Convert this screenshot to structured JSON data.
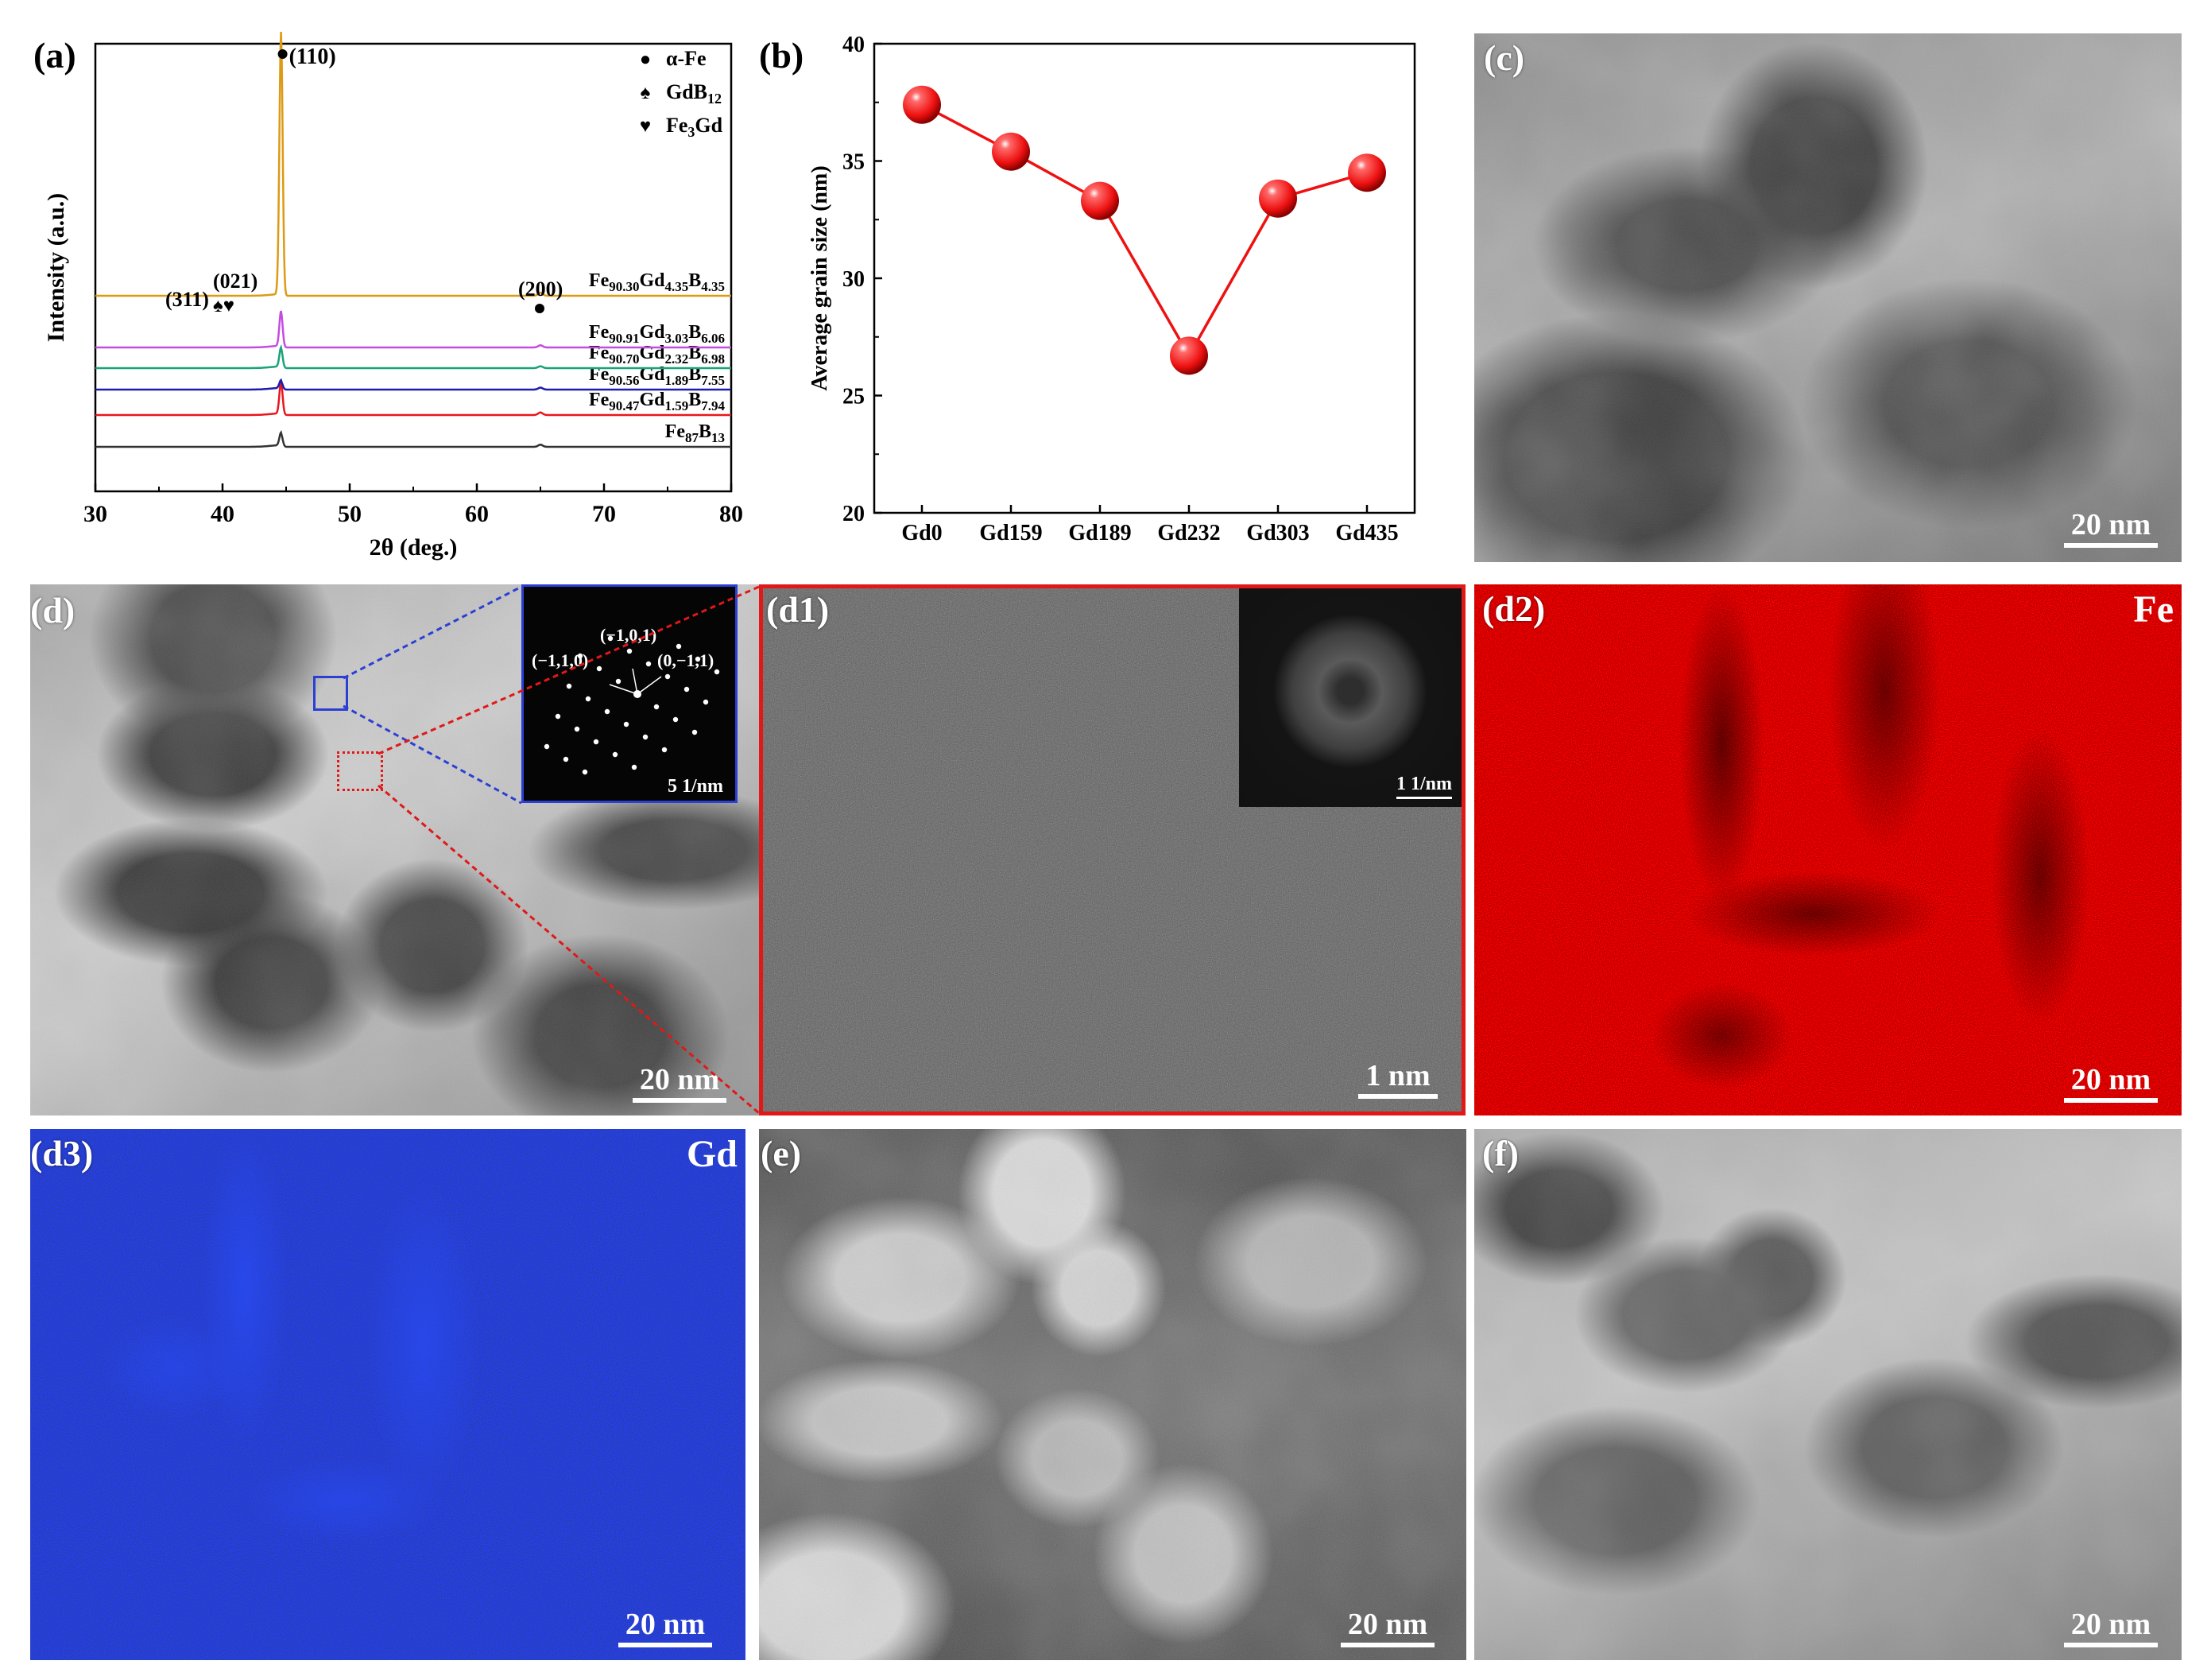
{
  "panels": {
    "a": {
      "label": "(a)",
      "chart_data": {
        "type": "line",
        "xlabel": "2θ (deg.)",
        "ylabel": "Intensity (a.u.)",
        "xlim": [
          30,
          80
        ],
        "xticks": [
          "30",
          "40",
          "50",
          "60",
          "70",
          "80"
        ],
        "legend": [
          {
            "symbol": "●",
            "text": "α-Fe"
          },
          {
            "symbol": "♠",
            "text": "GdB",
            "sub": "12"
          },
          {
            "symbol": "♥",
            "text": "Fe",
            "sub": "3",
            "rest": "Gd"
          }
        ],
        "peak_labels": [
          "(110)",
          "(311)",
          "(021)",
          "(200)"
        ],
        "series": [
          {
            "name": "Fe87B13",
            "color": "#333333",
            "peak_110": 0.3,
            "peak_200": 0.05
          },
          {
            "name": "Fe90.47Gd1.59B7.94",
            "color": "#e8161b",
            "peak_110": 1.0,
            "peak_200": 0.08
          },
          {
            "name": "Fe90.56Gd1.89B7.55",
            "color": "#1c1cae",
            "peak_110": 0.2,
            "peak_200": 0.05
          },
          {
            "name": "Fe90.70Gd2.32B6.98",
            "color": "#18a37a",
            "peak_110": 0.6,
            "peak_200": 0.06
          },
          {
            "name": "Fe90.91Gd3.03B6.06",
            "color": "#c54ce0",
            "peak_110": 1.6,
            "peak_200": 0.1
          },
          {
            "name": "Fe90.30Gd4.35B4.35",
            "color": "#dd9a14",
            "peak_110": 17.0,
            "peak_200": 0.2
          }
        ]
      }
    },
    "b": {
      "label": "(b)",
      "chart_data": {
        "type": "line",
        "xlabel": "",
        "ylabel": "Average grain size (nm)",
        "ylim": [
          20,
          40
        ],
        "yticks": [
          "20",
          "25",
          "30",
          "35",
          "40"
        ],
        "categories": [
          "Gd0",
          "Gd159",
          "Gd189",
          "Gd232",
          "Gd303",
          "Gd435"
        ],
        "values": [
          37.4,
          35.4,
          33.3,
          26.7,
          33.4,
          34.5
        ],
        "color": "#ee1111"
      }
    },
    "c": {
      "label": "(c)",
      "scale": "20 nm"
    },
    "d": {
      "label": "(d)",
      "scale": "20 nm",
      "inset_scale": "5 1/nm",
      "inset_labels": [
        "(−1,0,1)",
        "(−1,1,0)",
        "(0,−1,1)"
      ]
    },
    "d1": {
      "label": "(d1)",
      "scale": "1 nm",
      "inset_scale": "1 1/nm"
    },
    "d2": {
      "label": "(d2)",
      "scale": "20 nm",
      "element": "Fe"
    },
    "d3": {
      "label": "(d3)",
      "scale": "20 nm",
      "element": "Gd"
    },
    "e": {
      "label": "(e)",
      "scale": "20 nm"
    },
    "f": {
      "label": "(f)",
      "scale": "20 nm"
    }
  }
}
